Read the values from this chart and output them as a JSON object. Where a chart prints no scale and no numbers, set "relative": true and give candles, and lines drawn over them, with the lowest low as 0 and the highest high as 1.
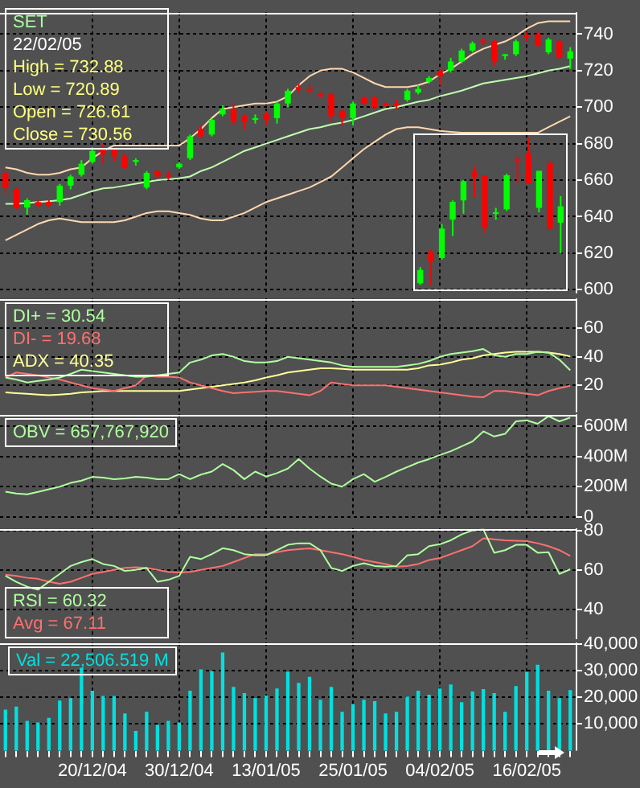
{
  "chart_data": [
    {
      "type": "candlestick",
      "title": "SET",
      "subtitle": "22/02/05",
      "annotations": [
        "High = 732.88",
        "Low = 720.89",
        "Open = 726.61",
        "Close = 730.56"
      ],
      "categories": [
        null,
        null,
        null,
        null,
        null,
        null,
        null,
        null,
        null,
        null,
        null,
        null,
        null,
        null,
        null,
        null,
        null,
        null,
        null,
        null,
        null,
        null,
        null,
        null,
        null,
        null,
        null,
        null,
        null,
        null,
        null,
        null,
        null,
        null,
        null,
        null,
        null,
        null,
        null,
        null,
        null,
        null,
        null,
        null,
        null,
        null,
        null,
        null,
        null,
        null,
        null,
        null,
        null
      ],
      "ohlc": [
        [
          664,
          666,
          653,
          656
        ],
        [
          655,
          656,
          644,
          645
        ],
        [
          645,
          650,
          641,
          649
        ],
        [
          648,
          649,
          645,
          646
        ],
        [
          648,
          649,
          645,
          646
        ],
        [
          648,
          658,
          646,
          657
        ],
        [
          657,
          663,
          655,
          662
        ],
        [
          663,
          671,
          662,
          669
        ],
        [
          670,
          678,
          669,
          676
        ],
        [
          677,
          680,
          669,
          674
        ],
        [
          677,
          678,
          670,
          673
        ],
        [
          673,
          675,
          666,
          667
        ],
        [
          670,
          672,
          668,
          671
        ],
        [
          656,
          665,
          655,
          664
        ],
        [
          665,
          666,
          661,
          662
        ],
        [
          663,
          665,
          660,
          662
        ],
        [
          667,
          670,
          666,
          669
        ],
        [
          672,
          685,
          671,
          684
        ],
        [
          688,
          690,
          683,
          684
        ],
        [
          685,
          694,
          684,
          693
        ],
        [
          696,
          701,
          695,
          699
        ],
        [
          699,
          702,
          690,
          692
        ],
        [
          695,
          696,
          688,
          692
        ],
        [
          693,
          696,
          691,
          694
        ],
        [
          696,
          698,
          690,
          693
        ],
        [
          694,
          703,
          691,
          702
        ],
        [
          702,
          710,
          700,
          709
        ],
        [
          711,
          713,
          708,
          710
        ],
        [
          710,
          713,
          707,
          709
        ],
        [
          707,
          708,
          705,
          706
        ],
        [
          707,
          708,
          692,
          695
        ],
        [
          698,
          699,
          690,
          694
        ],
        [
          694,
          703,
          690,
          702
        ],
        [
          705,
          706,
          701,
          702
        ],
        [
          705,
          706,
          699,
          700
        ],
        [
          702,
          703,
          700,
          701.5
        ],
        [
          702,
          704,
          699,
          701.5
        ],
        [
          704,
          710,
          703,
          709
        ],
        [
          708,
          712,
          707,
          710
        ],
        [
          714,
          717,
          713,
          716
        ],
        [
          720,
          721,
          712,
          717
        ],
        [
          720,
          727,
          719,
          725
        ],
        [
          725,
          732,
          724,
          731
        ],
        [
          731,
          736,
          730,
          735
        ],
        [
          736.5,
          738,
          734,
          735.5
        ],
        [
          736,
          737,
          723,
          725
        ],
        [
          728,
          729,
          726,
          729
        ],
        [
          729,
          737,
          728,
          736
        ],
        [
          739,
          741,
          736,
          738
        ],
        [
          740,
          742,
          733,
          734
        ],
        [
          730,
          738,
          729,
          737
        ],
        [
          736,
          737,
          726,
          727
        ],
        [
          726.61,
          732.88,
          720.89,
          730.56
        ]
      ],
      "colors": [
        "#ff0000",
        "#ff0000",
        "#00ff00",
        "#ff0000",
        "#ff0000",
        "#00ff00",
        "#00ff00",
        "#00ff00",
        "#00ff00",
        "#ff0000",
        "#ff0000",
        "#ff0000",
        "#00ff00",
        "#00ff00",
        "#ff0000",
        "#ff0000",
        "#00ff00",
        "#00ff00",
        "#ff0000",
        "#00ff00",
        "#00ff00",
        "#ff0000",
        "#ff0000",
        "#00ff00",
        "#ff0000",
        "#00ff00",
        "#00ff00",
        "#ff0000",
        "#ff0000",
        "#ff0000",
        "#ff0000",
        "#ff0000",
        "#00ff00",
        "#ff0000",
        "#ff0000",
        "#ff0000",
        "#ff0000",
        "#00ff00",
        "#00ff00",
        "#00ff00",
        "#ff0000",
        "#00ff00",
        "#00ff00",
        "#00ff00",
        "#ff0000",
        "#ff0000",
        "#00ff00",
        "#00ff00",
        "#ff0000",
        "#ff0000",
        "#00ff00",
        "#ff0000",
        "#00ff00"
      ],
      "series": [
        {
          "type": "line",
          "color": "#ffd8b0",
          "values": [
            667,
            666,
            664,
            663,
            663,
            664,
            666,
            667,
            672,
            676,
            679,
            679,
            679,
            679,
            679,
            679,
            679,
            683,
            688,
            694,
            699,
            700,
            701,
            702,
            702,
            703,
            706,
            712,
            717,
            720,
            721,
            721,
            719,
            716,
            713,
            711,
            711,
            711,
            712,
            714,
            718,
            721,
            725,
            729,
            732,
            734,
            736,
            739,
            743,
            746,
            747,
            747,
            747
          ]
        },
        {
          "type": "line",
          "color": "#c0ffb0",
          "values": [
            647,
            647,
            647.5,
            648,
            648.5,
            649,
            650,
            652,
            654,
            655.5,
            656,
            657,
            658,
            659,
            660,
            660.5,
            661,
            662,
            665,
            667,
            670,
            673,
            676,
            678,
            680,
            682,
            684,
            686,
            688,
            689,
            690.5,
            691.5,
            693,
            695,
            697,
            699,
            700,
            701.5,
            703,
            704,
            706,
            707.5,
            709,
            711,
            713,
            714,
            715,
            716,
            717,
            718.5,
            720,
            721,
            722.5
          ]
        },
        {
          "type": "line",
          "color": "#ffd8b0",
          "values": [
            627,
            630,
            633,
            636,
            638,
            639,
            638,
            637,
            637,
            637,
            637,
            638,
            640,
            642,
            643,
            643,
            642,
            641,
            639,
            638,
            638,
            640,
            642,
            645,
            648,
            650,
            652,
            654,
            656,
            659,
            662,
            667,
            672,
            677,
            681,
            685,
            688,
            689,
            689,
            688,
            687,
            686.5,
            686,
            686,
            686,
            686,
            686,
            686,
            686,
            686,
            689,
            692,
            695
          ]
        }
      ],
      "ylim": [
        598,
        752
      ],
      "yticks": [
        600,
        620,
        640,
        660,
        680,
        700,
        720,
        740
      ],
      "grid": true,
      "tick_labels": "y"
    },
    {
      "type": "line",
      "categories": [
        null,
        null,
        null,
        null,
        null,
        null,
        null,
        null,
        null,
        null,
        null,
        null,
        null,
        null,
        null,
        null,
        null,
        null,
        null,
        null,
        null,
        null,
        null,
        null,
        null,
        null,
        null,
        null,
        null,
        null,
        null,
        null,
        null,
        null,
        null,
        null,
        null,
        null,
        null,
        null,
        null,
        null,
        null,
        null,
        null,
        null,
        null,
        null,
        null,
        null,
        null,
        null,
        null
      ],
      "series": [
        {
          "name": "DI+ = 30.54",
          "color": "#b0ffa0",
          "values": [
            25.5,
            24,
            22,
            23,
            24,
            25.5,
            28,
            31,
            30,
            29,
            28,
            27,
            26,
            26,
            27,
            28,
            29,
            36,
            38,
            41,
            42,
            40,
            37,
            36,
            36,
            37,
            40,
            39,
            38,
            37,
            36,
            34,
            33,
            33,
            33,
            33,
            33,
            34,
            35,
            37,
            40,
            42,
            43,
            44,
            45.5,
            41,
            40,
            42,
            42,
            43.6,
            43,
            38,
            30.54
          ]
        },
        {
          "name": "DI- = 19.68",
          "color": "#ff7070",
          "values": [
            25.5,
            29,
            28,
            27,
            25.5,
            24,
            22,
            20,
            18,
            17,
            16,
            18,
            20,
            27,
            26,
            26,
            25.5,
            22,
            20,
            18,
            16,
            14.5,
            15,
            15.5,
            16,
            16,
            15,
            14,
            13,
            16,
            22,
            21,
            20,
            20,
            20,
            20,
            19,
            18,
            17,
            16,
            15,
            14,
            13,
            12,
            11.6,
            16,
            16,
            15,
            14,
            13,
            16,
            18,
            19.68
          ]
        },
        {
          "name": "ADX = 40.35",
          "color": "#ffff99",
          "values": [
            15,
            14.5,
            14,
            13.5,
            13,
            13.5,
            14,
            15,
            15.5,
            16,
            16,
            16,
            16,
            16,
            16,
            16,
            16,
            17,
            18,
            19,
            20,
            21,
            22,
            23.5,
            25.5,
            27,
            29,
            30,
            31,
            32,
            32,
            31.5,
            31,
            31,
            31,
            31,
            31,
            31,
            32,
            34,
            34.5,
            36,
            38,
            39,
            41,
            42,
            43,
            43.6,
            43.6,
            43.6,
            43,
            42,
            40.35
          ]
        }
      ],
      "ylim": [
        1,
        81
      ],
      "yticks": [
        20,
        40,
        60
      ],
      "grid": true,
      "tick_labels": "y",
      "legend": "top left"
    },
    {
      "type": "line",
      "categories": [
        null,
        null,
        null,
        null,
        null,
        null,
        null,
        null,
        null,
        null,
        null,
        null,
        null,
        null,
        null,
        null,
        null,
        null,
        null,
        null,
        null,
        null,
        null,
        null,
        null,
        null,
        null,
        null,
        null,
        null,
        null,
        null,
        null,
        null,
        null,
        null,
        null,
        null,
        null,
        null,
        null,
        null,
        null,
        null,
        null,
        null,
        null,
        null,
        null,
        null,
        null,
        null,
        null
      ],
      "series": [
        {
          "name": "OBV = 657,767,920",
          "color": "#b0ffa0",
          "values": [
            167000000,
            155000000,
            150000000,
            165000000,
            183000000,
            200000000,
            225000000,
            240000000,
            265000000,
            260000000,
            250000000,
            255000000,
            265000000,
            260000000,
            250000000,
            250000000,
            283000000,
            250000000,
            280000000,
            300000000,
            350000000,
            310000000,
            250000000,
            300000000,
            267000000,
            290000000,
            320000000,
            383000000,
            320000000,
            267000000,
            220000000,
            200000000,
            250000000,
            283000000,
            233000000,
            265000000,
            300000000,
            330000000,
            360000000,
            383000000,
            410000000,
            435000000,
            467000000,
            500000000,
            567000000,
            533000000,
            550000000,
            633000000,
            640000000,
            617000000,
            667000000,
            633000000,
            657767920
          ]
        }
      ],
      "ylim": [
        0,
        680000000
      ],
      "yticks": [
        {
          "value": 0,
          "label": "0"
        },
        {
          "value": 200000000,
          "label": "200M"
        },
        {
          "value": 400000000,
          "label": "400M"
        },
        {
          "value": 600000000,
          "label": "600M"
        }
      ],
      "grid": true,
      "tick_labels": "y",
      "legend": "top left"
    },
    {
      "type": "line",
      "categories": [
        null,
        null,
        null,
        null,
        null,
        null,
        null,
        null,
        null,
        null,
        null,
        null,
        null,
        null,
        null,
        null,
        null,
        null,
        null,
        null,
        null,
        null,
        null,
        null,
        null,
        null,
        null,
        null,
        null,
        null,
        null,
        null,
        null,
        null,
        null,
        null,
        null,
        null,
        null,
        null,
        null,
        null,
        null,
        null,
        null,
        null,
        null,
        null,
        null,
        null,
        null,
        null,
        null
      ],
      "series": [
        {
          "name": "RSI = 60.32",
          "color": "#b0ffa0",
          "values": [
            57,
            54,
            51.5,
            50,
            54,
            58,
            62,
            64,
            65.5,
            63,
            62,
            59.5,
            60,
            61,
            54,
            55,
            57,
            66.6,
            65.5,
            68,
            71,
            70,
            68,
            67.4,
            67.4,
            70,
            72.7,
            73.5,
            73.5,
            70,
            61,
            59.5,
            62,
            63.4,
            62,
            61.6,
            62,
            67.4,
            68,
            72,
            73,
            75,
            78,
            80,
            80.5,
            68.7,
            70,
            72.7,
            72.7,
            68.7,
            69,
            58,
            60.32
          ]
        },
        {
          "name": "Avg = 67.11",
          "color": "#ff7070",
          "values": [
            57.6,
            57,
            56,
            55.5,
            54,
            53,
            54,
            56,
            58,
            59,
            60,
            61,
            61.3,
            61,
            60,
            59,
            58.7,
            59,
            60,
            61,
            62,
            64,
            66,
            68,
            68,
            69,
            70,
            70.5,
            70.9,
            70,
            69,
            68,
            66.6,
            65,
            64,
            63,
            61.6,
            62,
            63,
            65,
            66,
            68,
            70,
            72,
            76,
            75.5,
            75,
            74.8,
            74.6,
            73.5,
            72,
            70,
            67.11
          ]
        }
      ],
      "ylim": [
        25,
        81
      ],
      "yticks": [
        40,
        60,
        80
      ],
      "grid": true,
      "tick_labels": "y",
      "legend": "bottom left"
    },
    {
      "type": "bar",
      "categories": [
        null,
        null,
        null,
        null,
        null,
        null,
        null,
        null,
        "20/12/04",
        null,
        null,
        null,
        null,
        null,
        null,
        null,
        "30/12/04",
        null,
        null,
        null,
        null,
        null,
        null,
        null,
        "13/01/05",
        null,
        null,
        null,
        null,
        null,
        null,
        null,
        "25/01/05",
        null,
        null,
        null,
        null,
        null,
        null,
        null,
        "04/02/05",
        null,
        null,
        null,
        null,
        null,
        null,
        null,
        "16/02/05",
        null,
        null,
        null,
        null
      ],
      "series": [
        {
          "name": "Val = 22,506.519 M",
          "color": "#00e0e0",
          "values": [
            15200,
            16300,
            11000,
            10400,
            12100,
            18600,
            19500,
            30900,
            22300,
            20300,
            20300,
            13800,
            7200,
            14400,
            9500,
            11000,
            10400,
            22300,
            30300,
            29700,
            36600,
            23700,
            21400,
            19500,
            20500,
            23100,
            29400,
            25200,
            27500,
            18900,
            23700,
            14400,
            17200,
            18900,
            18400,
            13800,
            14400,
            20100,
            22300,
            20800,
            23100,
            24600,
            18000,
            22000,
            22900,
            21400,
            14400,
            24000,
            29400,
            32000,
            22300,
            19500,
            22506.519
          ]
        }
      ],
      "ylim": [
        0,
        40500
      ],
      "yticks": [
        {
          "value": 10000,
          "label": "10,000"
        },
        {
          "value": 20000,
          "label": "20,000"
        },
        {
          "value": 30000,
          "label": "30,000"
        },
        {
          "value": 40000,
          "label": "40,000"
        }
      ],
      "grid": true,
      "legend": "top left"
    },
    {
      "type": "candlestick",
      "relative": true,
      "tick_labels": false,
      "categories": [
        null,
        null,
        null,
        null,
        null,
        null,
        null,
        null,
        null,
        null,
        null,
        null,
        null,
        null
      ],
      "ohlc": [
        [
          0.02,
          0.13,
          0.01,
          0.11
        ],
        [
          0.23,
          0.25,
          0,
          0.17
        ],
        [
          0.19,
          0.42,
          0.18,
          0.39
        ],
        [
          0.45,
          0.58,
          0.34,
          0.57
        ],
        [
          0.58,
          0.72,
          0.49,
          0.71
        ],
        [
          0.77,
          0.81,
          0.6,
          0.74
        ],
        [
          0.75,
          0.75,
          0.36,
          0.4
        ],
        [
          0.49,
          0.53,
          0.45,
          0.5
        ],
        [
          0.52,
          0.76,
          0.51,
          0.75
        ],
        [
          0.86,
          0.88,
          0.7,
          0.85
        ],
        [
          0.9,
          1,
          0.69,
          0.69
        ],
        [
          0.53,
          0.78,
          0.5,
          0.78
        ],
        [
          0.83,
          0.85,
          0.38,
          0.39
        ],
        [
          0.43,
          0.61,
          0.22,
          0.54
        ]
      ],
      "colors": [
        "#00ff00",
        "#ff0000",
        "#00ff00",
        "#00ff00",
        "#00ff00",
        "#ff0000",
        "#ff0000",
        "#00ff00",
        "#00ff00",
        "#ff0000",
        "#ff0000",
        "#00ff00",
        "#ff0000",
        "#00ff00"
      ]
    }
  ]
}
